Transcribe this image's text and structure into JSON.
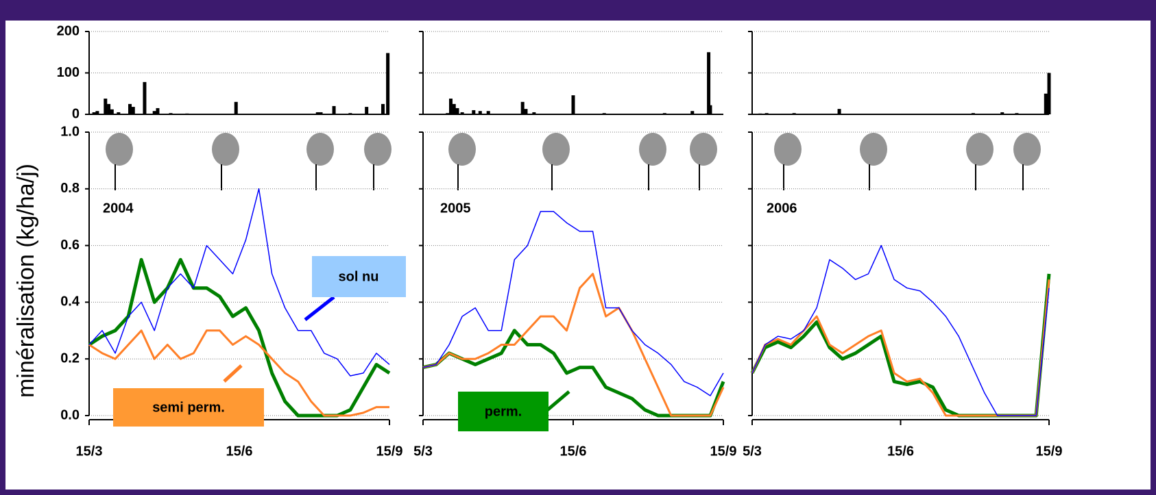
{
  "chart_data": [
    {
      "type": "line",
      "year": "2004",
      "ylabel": "minéralisation (kg/ha/j)",
      "xlim": [
        0,
        184
      ],
      "xticks": [
        {
          "value": 0,
          "label": "15/3"
        },
        {
          "value": 92,
          "label": "15/6"
        },
        {
          "value": 184,
          "label": "15/9"
        }
      ],
      "ylim": [
        0,
        1
      ],
      "yticks": [
        {
          "value": 0,
          "label": "0.0"
        },
        0.2,
        0.4,
        0.6,
        0.8,
        {
          "value": 1,
          "label": "1.0"
        }
      ],
      "rain": {
        "ylim": [
          0,
          200
        ],
        "yticks": [
          0,
          100,
          200
        ],
        "color": "#000000",
        "x": [
          3,
          5,
          10,
          12,
          14,
          18,
          25,
          27,
          34,
          40,
          42,
          50,
          60,
          90,
          140,
          142,
          150,
          160,
          170,
          180,
          183
        ],
        "values": [
          5,
          8,
          38,
          25,
          12,
          5,
          25,
          18,
          78,
          8,
          15,
          3,
          2,
          30,
          5,
          5,
          20,
          3,
          18,
          25,
          148
        ]
      },
      "x": [
        0,
        8,
        16,
        24,
        32,
        40,
        48,
        56,
        64,
        72,
        80,
        88,
        96,
        104,
        112,
        120,
        128,
        136,
        144,
        152,
        160,
        168,
        176,
        184
      ],
      "series": [
        {
          "name": "perm.",
          "color": "#008000",
          "values": [
            0.25,
            0.28,
            0.3,
            0.35,
            0.55,
            0.4,
            0.45,
            0.55,
            0.45,
            0.45,
            0.42,
            0.35,
            0.38,
            0.3,
            0.15,
            0.05,
            0,
            0,
            0,
            0,
            0.02,
            0.1,
            0.18,
            0.15
          ]
        },
        {
          "name": "semi perm.",
          "color": "#ff7f27",
          "values": [
            0.25,
            0.22,
            0.2,
            0.25,
            0.3,
            0.2,
            0.25,
            0.2,
            0.22,
            0.3,
            0.3,
            0.25,
            0.28,
            0.25,
            0.2,
            0.15,
            0.12,
            0.05,
            0,
            0,
            0,
            0.01,
            0.03,
            0.03
          ]
        },
        {
          "name": "sol nu",
          "color": "#0000ff",
          "values": [
            0.25,
            0.3,
            0.22,
            0.35,
            0.4,
            0.3,
            0.45,
            0.5,
            0.45,
            0.6,
            0.55,
            0.5,
            0.62,
            0.8,
            0.5,
            0.38,
            0.3,
            0.3,
            0.22,
            0.2,
            0.14,
            0.15,
            0.22,
            0.18
          ]
        }
      ]
    },
    {
      "type": "line",
      "year": "2005",
      "xlim": [
        0,
        184
      ],
      "xticks": [
        {
          "value": 0,
          "label": "5/3"
        },
        {
          "value": 92,
          "label": "15/6"
        },
        {
          "value": 184,
          "label": "15/9"
        }
      ],
      "rain": {
        "x": [
          15,
          17,
          19,
          21,
          24,
          31,
          35,
          40,
          61,
          63,
          68,
          92,
          111,
          148,
          165,
          175,
          176
        ],
        "values": [
          3,
          38,
          25,
          15,
          5,
          10,
          8,
          8,
          30,
          13,
          5,
          46,
          3,
          3,
          8,
          150,
          22
        ]
      },
      "x": [
        0,
        8,
        16,
        24,
        32,
        40,
        48,
        56,
        64,
        72,
        80,
        88,
        96,
        104,
        112,
        120,
        128,
        136,
        144,
        152,
        160,
        168,
        176,
        184
      ],
      "series": [
        {
          "color": "#008000",
          "values": [
            0.17,
            0.18,
            0.22,
            0.2,
            0.18,
            0.2,
            0.22,
            0.3,
            0.25,
            0.25,
            0.22,
            0.15,
            0.17,
            0.17,
            0.1,
            0.08,
            0.06,
            0.02,
            0,
            0,
            0,
            0,
            0,
            0.12
          ]
        },
        {
          "color": "#ff7f27",
          "values": [
            0.17,
            0.18,
            0.22,
            0.2,
            0.2,
            0.22,
            0.25,
            0.25,
            0.3,
            0.35,
            0.35,
            0.3,
            0.45,
            0.5,
            0.35,
            0.38,
            0.3,
            0.2,
            0.1,
            0,
            0,
            0,
            0,
            0.1
          ]
        },
        {
          "color": "#0000ff",
          "values": [
            0.17,
            0.18,
            0.25,
            0.35,
            0.38,
            0.3,
            0.3,
            0.55,
            0.6,
            0.72,
            0.72,
            0.68,
            0.65,
            0.65,
            0.38,
            0.38,
            0.3,
            0.25,
            0.22,
            0.18,
            0.12,
            0.1,
            0.07,
            0.15
          ]
        }
      ]
    },
    {
      "type": "line",
      "year": "2006",
      "xlim": [
        0,
        184
      ],
      "xticks": [
        {
          "value": 0,
          "label": "5/3"
        },
        {
          "value": 92,
          "label": "15/6"
        },
        {
          "value": 184,
          "label": "15/9"
        }
      ],
      "rain": {
        "x": [
          5,
          9,
          26,
          54,
          137,
          155,
          164,
          182,
          184
        ],
        "values": [
          2,
          3,
          3,
          13,
          3,
          5,
          3,
          50,
          100
        ]
      },
      "x": [
        0,
        8,
        16,
        24,
        32,
        40,
        48,
        56,
        64,
        72,
        80,
        88,
        96,
        104,
        112,
        120,
        128,
        136,
        144,
        152,
        160,
        168,
        176,
        184
      ],
      "series": [
        {
          "color": "#008000",
          "values": [
            0.15,
            0.24,
            0.26,
            0.24,
            0.28,
            0.33,
            0.24,
            0.2,
            0.22,
            0.25,
            0.28,
            0.12,
            0.11,
            0.12,
            0.1,
            0.02,
            0,
            0,
            0,
            0,
            0,
            0,
            0,
            0.5
          ]
        },
        {
          "color": "#ff7f27",
          "values": [
            0.15,
            0.25,
            0.27,
            0.25,
            0.3,
            0.35,
            0.25,
            0.22,
            0.25,
            0.28,
            0.3,
            0.15,
            0.12,
            0.13,
            0.08,
            0,
            0,
            0,
            0,
            0,
            0,
            0,
            0,
            0.48
          ]
        },
        {
          "color": "#0000ff",
          "values": [
            0.15,
            0.25,
            0.28,
            0.27,
            0.3,
            0.38,
            0.55,
            0.52,
            0.48,
            0.5,
            0.6,
            0.48,
            0.45,
            0.44,
            0.4,
            0.35,
            0.28,
            0.18,
            0.08,
            0,
            0,
            0,
            0,
            0.45
          ]
        }
      ]
    }
  ]
}
